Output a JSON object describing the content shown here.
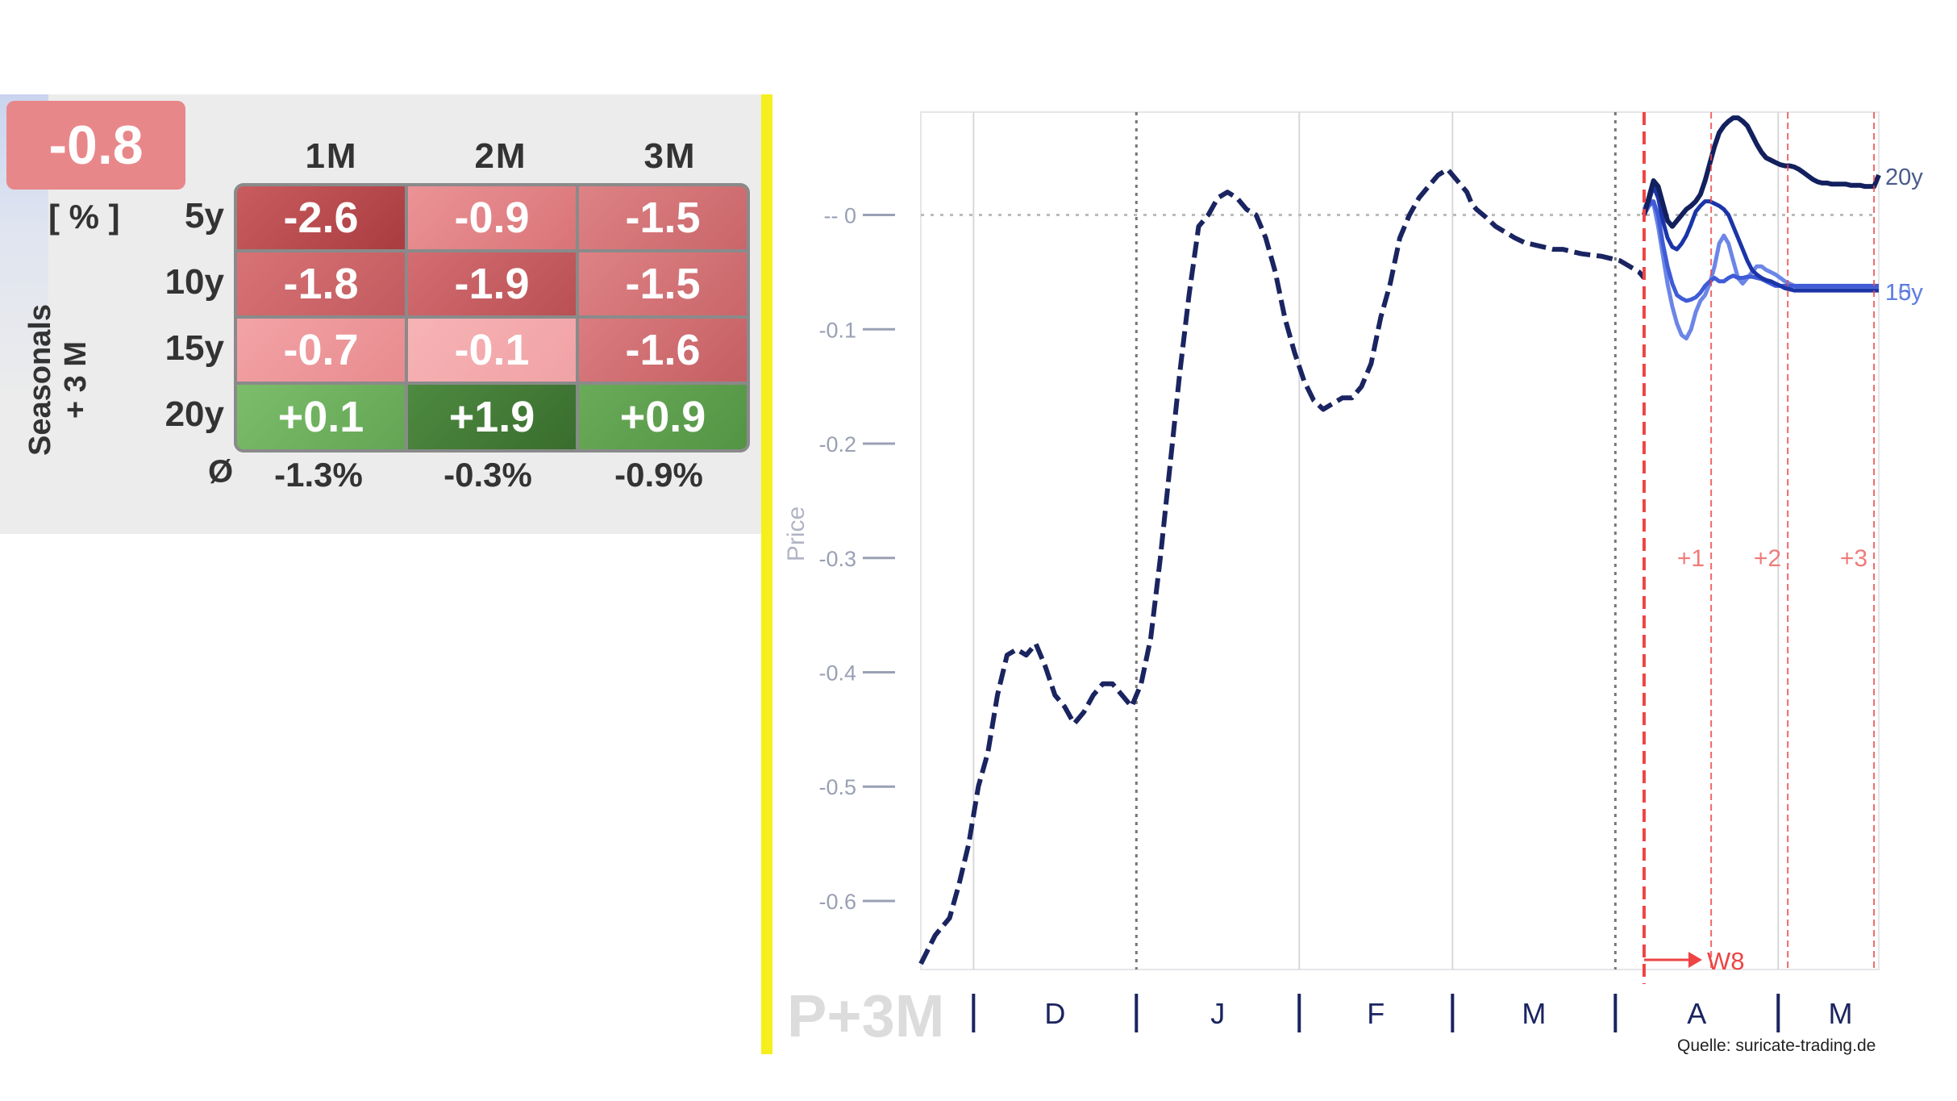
{
  "headline": {
    "value": "-0.8"
  },
  "table": {
    "unit": "[ % ]",
    "side_title_line1": "Seasonals",
    "side_title_line2": "+ 3 M",
    "columns": [
      "1M",
      "2M",
      "3M"
    ],
    "rows": [
      {
        "label": "5y",
        "values": [
          "-2.6",
          "-0.9",
          "-1.5"
        ]
      },
      {
        "label": "10y",
        "values": [
          "-1.8",
          "-1.9",
          "-1.5"
        ]
      },
      {
        "label": "15y",
        "values": [
          "-0.7",
          "-0.1",
          "-1.6"
        ]
      },
      {
        "label": "20y",
        "values": [
          "+0.1",
          "+1.9",
          "+0.9"
        ]
      }
    ],
    "avg_symbol": "Ø",
    "averages": [
      "-1.3%",
      "-0.3%",
      "-0.9%"
    ],
    "colors": {
      "negative_strong": "#b94a4d",
      "negative_light": "#f3a5a8",
      "positive": "#5a9e4a",
      "positive_strong": "#3f7a33"
    }
  },
  "chart_data": {
    "type": "line",
    "ylabel": "Price",
    "yticks": [
      0,
      -0.1,
      -0.2,
      -0.3,
      -0.4,
      -0.5,
      -0.6
    ],
    "ytick_labels": [
      "-- 0",
      "-0.1",
      "-0.2",
      "-0.3",
      "-0.4",
      "-0.5",
      "-0.6"
    ],
    "ylim": [
      -0.66,
      0.09
    ],
    "xlim": [
      0,
      100
    ],
    "month_labels": [
      "D",
      "J",
      "F",
      "M",
      "A",
      "M"
    ],
    "watermark": "P+3M",
    "current_marker": "W8",
    "forward_markers": [
      "+1",
      "+2",
      "+3"
    ],
    "series_end_labels": [
      "20y",
      "15y",
      "10y"
    ],
    "colors": {
      "past": "#1a2460",
      "y20": "#13205e",
      "y15": "#1b35a8",
      "y10": "#3f5bd6",
      "y5": "#6b86e6",
      "red": "#ee4444",
      "axis_text": "#9aa0b4"
    },
    "series": [
      {
        "name": "",
        "id": "past",
        "x": [
          0,
          1.5,
          3,
          4,
          5,
          6,
          7,
          8,
          9,
          10,
          11,
          12,
          13,
          14,
          15,
          16,
          17,
          18,
          19,
          20,
          21,
          22,
          23,
          24,
          25,
          26,
          27,
          28,
          29,
          30,
          31,
          32,
          33,
          34,
          35,
          36,
          37,
          38,
          39,
          40,
          41,
          42,
          43,
          44,
          45,
          46,
          47,
          48,
          49,
          50,
          51,
          52,
          53,
          54,
          55,
          56,
          57,
          57.5,
          58,
          59,
          60,
          61,
          62,
          63,
          64,
          65,
          66,
          67,
          68,
          69,
          70,
          71,
          72,
          73,
          74,
          75,
          75.5
        ],
        "y": [
          -0.655,
          -0.63,
          -0.615,
          -0.585,
          -0.55,
          -0.5,
          -0.47,
          -0.42,
          -0.385,
          -0.38,
          -0.385,
          -0.375,
          -0.395,
          -0.42,
          -0.43,
          -0.445,
          -0.435,
          -0.42,
          -0.41,
          -0.41,
          -0.42,
          -0.43,
          -0.41,
          -0.37,
          -0.3,
          -0.22,
          -0.14,
          -0.07,
          -0.01,
          0.0,
          0.015,
          0.02,
          0.015,
          0.005,
          0.0,
          -0.02,
          -0.05,
          -0.09,
          -0.12,
          -0.145,
          -0.162,
          -0.17,
          -0.165,
          -0.16,
          -0.16,
          -0.15,
          -0.13,
          -0.09,
          -0.06,
          -0.02,
          0.0,
          0.015,
          0.025,
          0.035,
          0.04,
          0.03,
          0.02,
          0.01,
          0.005,
          -0.002,
          -0.01,
          -0.015,
          -0.02,
          -0.024,
          -0.026,
          -0.028,
          -0.03,
          -0.03,
          -0.032,
          -0.034,
          -0.035,
          -0.036,
          -0.038,
          -0.04,
          -0.045,
          -0.05,
          -0.055
        ]
      },
      {
        "name": "20y",
        "id": "y20",
        "x": [
          0,
          2,
          4,
          6,
          8,
          10,
          12,
          14,
          16,
          18,
          20,
          22,
          24,
          26,
          28,
          30,
          32,
          34,
          36,
          38,
          40,
          42,
          44,
          46,
          48,
          50,
          52,
          54,
          56,
          58,
          60,
          62,
          64,
          66,
          68,
          70,
          72,
          74,
          76,
          78,
          80,
          82,
          84,
          86,
          88,
          90,
          92,
          94,
          96,
          98,
          100
        ],
        "y": [
          0.0,
          0.015,
          0.03,
          0.025,
          0.01,
          -0.005,
          -0.01,
          -0.005,
          0.0,
          0.005,
          0.008,
          0.012,
          0.018,
          0.03,
          0.045,
          0.06,
          0.072,
          0.078,
          0.082,
          0.085,
          0.085,
          0.082,
          0.078,
          0.07,
          0.062,
          0.055,
          0.05,
          0.048,
          0.046,
          0.044,
          0.043,
          0.043,
          0.042,
          0.04,
          0.037,
          0.034,
          0.031,
          0.029,
          0.028,
          0.028,
          0.027,
          0.027,
          0.027,
          0.027,
          0.026,
          0.026,
          0.026,
          0.025,
          0.025,
          0.025,
          0.035
        ]
      },
      {
        "name": "15y",
        "id": "y15",
        "x": [
          0,
          2,
          4,
          6,
          8,
          10,
          12,
          14,
          16,
          18,
          20,
          22,
          24,
          26,
          28,
          30,
          32,
          34,
          36,
          38,
          40,
          42,
          44,
          46,
          48,
          50,
          52,
          54,
          56,
          58,
          60,
          62,
          64,
          66,
          68,
          70,
          72,
          74,
          76,
          78,
          80,
          82,
          84,
          86,
          88,
          90,
          92,
          94,
          96,
          98,
          100
        ],
        "y": [
          0.0,
          0.012,
          0.025,
          0.015,
          -0.005,
          -0.02,
          -0.028,
          -0.03,
          -0.025,
          -0.018,
          -0.008,
          0.003,
          0.008,
          0.012,
          0.012,
          0.01,
          0.008,
          0.005,
          0.0,
          -0.01,
          -0.02,
          -0.03,
          -0.04,
          -0.048,
          -0.052,
          -0.055,
          -0.057,
          -0.058,
          -0.06,
          -0.062,
          -0.064,
          -0.065,
          -0.066,
          -0.066,
          -0.066,
          -0.066,
          -0.066,
          -0.066,
          -0.066,
          -0.066,
          -0.066,
          -0.066,
          -0.066,
          -0.066,
          -0.066,
          -0.066,
          -0.066,
          -0.066,
          -0.066,
          -0.066,
          -0.066
        ]
      },
      {
        "name": "10y",
        "id": "y10",
        "x": [
          0,
          2,
          4,
          6,
          8,
          10,
          12,
          14,
          16,
          18,
          20,
          22,
          24,
          26,
          28,
          30,
          32,
          34,
          36,
          38,
          40,
          42,
          44,
          46,
          48,
          50,
          52,
          54,
          56,
          58,
          60,
          62,
          64,
          66,
          68,
          70,
          72,
          74,
          76,
          78,
          80,
          82,
          84,
          86,
          88,
          90,
          92,
          94,
          96,
          98,
          100
        ],
        "y": [
          0.0,
          0.008,
          0.012,
          0.0,
          -0.025,
          -0.045,
          -0.06,
          -0.07,
          -0.073,
          -0.075,
          -0.074,
          -0.072,
          -0.068,
          -0.062,
          -0.058,
          -0.055,
          -0.058,
          -0.058,
          -0.055,
          -0.053,
          -0.055,
          -0.055,
          -0.054,
          -0.054,
          -0.055,
          -0.056,
          -0.058,
          -0.06,
          -0.062,
          -0.062,
          -0.062,
          -0.062,
          -0.062,
          -0.062,
          -0.062,
          -0.062,
          -0.062,
          -0.062,
          -0.062,
          -0.062,
          -0.062,
          -0.062,
          -0.062,
          -0.062,
          -0.062,
          -0.062,
          -0.062,
          -0.062,
          -0.062,
          -0.062,
          -0.062
        ]
      },
      {
        "name": "",
        "id": "y5",
        "x": [
          0,
          2,
          4,
          6,
          8,
          10,
          12,
          14,
          16,
          18,
          20,
          22,
          24,
          26,
          28,
          30,
          32,
          34,
          36,
          38,
          40,
          42,
          44,
          46,
          48,
          50,
          52,
          54,
          56,
          58,
          60,
          62,
          64,
          66,
          68,
          70,
          72,
          74,
          76,
          78,
          80,
          82,
          84,
          86,
          88,
          90,
          92,
          94,
          96,
          98,
          100
        ],
        "y": [
          0.005,
          0.015,
          0.01,
          -0.01,
          -0.035,
          -0.06,
          -0.08,
          -0.095,
          -0.105,
          -0.108,
          -0.1,
          -0.085,
          -0.075,
          -0.07,
          -0.06,
          -0.045,
          -0.025,
          -0.018,
          -0.025,
          -0.04,
          -0.055,
          -0.06,
          -0.055,
          -0.05,
          -0.045,
          -0.045,
          -0.048,
          -0.05,
          -0.052,
          -0.055,
          -0.058,
          -0.06,
          -0.062,
          -0.064,
          -0.065,
          -0.065,
          -0.065,
          -0.065,
          -0.065,
          -0.065,
          -0.065,
          -0.065,
          -0.065,
          -0.065,
          -0.065,
          -0.065,
          -0.065,
          -0.065,
          -0.065,
          -0.065,
          -0.065
        ]
      }
    ]
  },
  "source": "Quelle: suricate-trading.de"
}
